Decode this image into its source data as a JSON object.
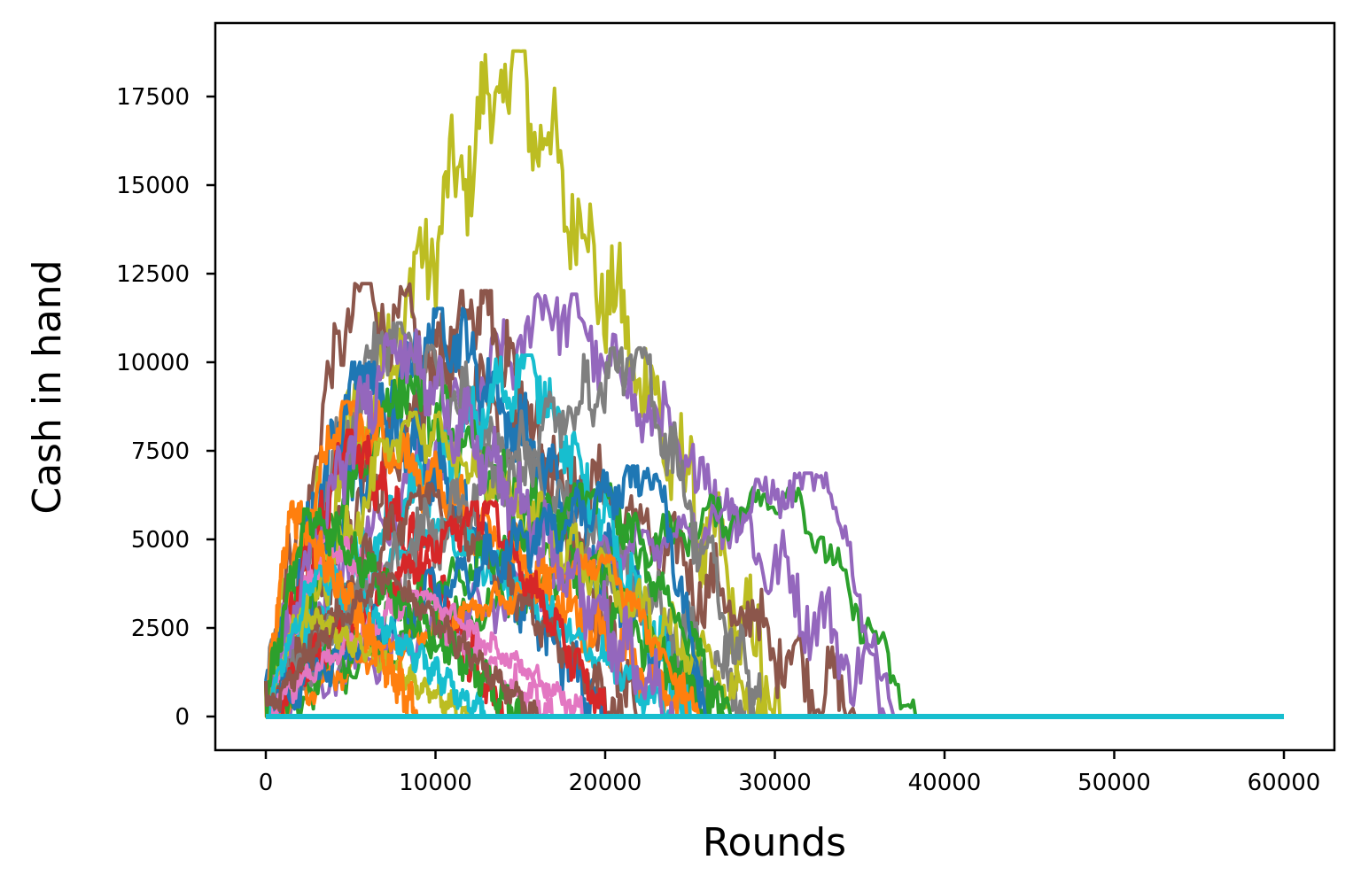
{
  "chart_data": {
    "type": "line",
    "title": "",
    "xlabel": "Rounds",
    "ylabel": "Cash in hand",
    "xlim": [
      -3000,
      63000
    ],
    "ylim": [
      -900,
      19500
    ],
    "xticks": [
      0,
      10000,
      20000,
      30000,
      40000,
      50000,
      60000
    ],
    "xtick_labels": [
      "0",
      "10000",
      "20000",
      "30000",
      "40000",
      "50000",
      "60000"
    ],
    "yticks": [
      0,
      2500,
      5000,
      7500,
      10000,
      12500,
      15000,
      17500
    ],
    "ytick_labels": [
      "0",
      "2500",
      "5000",
      "7500",
      "10000",
      "12500",
      "15000",
      "17500"
    ],
    "grid": false,
    "legend": null,
    "description": "Many simulated random-walk trajectories of cash in hand over rounds; all paths eventually hit 0 and stay flat at 0 until 60000 rounds.",
    "series": [
      {
        "name": "olive-max",
        "color": "#bcbd22",
        "peak_x": 14500,
        "peak_y": 18600,
        "end_x": 30300
      },
      {
        "name": "brown-early",
        "color": "#8c564b",
        "peak_x": 5200,
        "peak_y": 12100,
        "end_x": 35000
      },
      {
        "name": "purple-a",
        "color": "#9467bd",
        "peak_x": 17000,
        "peak_y": 11800,
        "end_x": 37200
      },
      {
        "name": "brown-b",
        "color": "#8c564b",
        "peak_x": 12800,
        "peak_y": 11900,
        "end_x": 22000
      },
      {
        "name": "blue-a",
        "color": "#1f77b4",
        "peak_x": 10300,
        "peak_y": 11400,
        "end_x": 26000
      },
      {
        "name": "gray-a",
        "color": "#7f7f7f",
        "peak_x": 7000,
        "peak_y": 11000,
        "end_x": 29200
      },
      {
        "name": "green-long",
        "color": "#2ca02c",
        "peak_x": 31000,
        "peak_y": 6400,
        "end_x": 38300
      },
      {
        "name": "purple-b",
        "color": "#9467bd",
        "peak_x": 33000,
        "peak_y": 6800,
        "end_x": 37000
      },
      {
        "name": "cyan-a",
        "color": "#17becf",
        "peak_x": 15500,
        "peak_y": 10100,
        "end_x": 25000
      },
      {
        "name": "blue-b",
        "color": "#1f77b4",
        "peak_x": 5500,
        "peak_y": 9900,
        "end_x": 20000
      },
      {
        "name": "green-a",
        "color": "#2ca02c",
        "peak_x": 8000,
        "peak_y": 9500,
        "end_x": 27000
      },
      {
        "name": "orange-a",
        "color": "#ff7f0e",
        "peak_x": 4500,
        "peak_y": 8800,
        "end_x": 25000
      },
      {
        "name": "red-a",
        "color": "#d62728",
        "peak_x": 5000,
        "peak_y": 8000,
        "end_x": 14000
      },
      {
        "name": "olive-b",
        "color": "#bcbd22",
        "peak_x": 8500,
        "peak_y": 8500,
        "end_x": 29500
      },
      {
        "name": "pink-a",
        "color": "#e377c2",
        "peak_x": 3500,
        "peak_y": 5000,
        "end_x": 17000
      },
      {
        "name": "cyan-b",
        "color": "#17becf",
        "peak_x": 10000,
        "peak_y": 5500,
        "end_x": 24000
      },
      {
        "name": "brown-c",
        "color": "#8c564b",
        "peak_x": 9500,
        "peak_y": 6500,
        "end_x": 21000
      },
      {
        "name": "orange-b",
        "color": "#ff7f0e",
        "peak_x": 20000,
        "peak_y": 4500,
        "end_x": 25500
      },
      {
        "name": "green-b",
        "color": "#2ca02c",
        "peak_x": 20000,
        "peak_y": 6500,
        "end_x": 27500
      },
      {
        "name": "gray-b",
        "color": "#7f7f7f",
        "peak_x": 22000,
        "peak_y": 10300,
        "end_x": 29000
      },
      {
        "name": "purple-c",
        "color": "#9467bd",
        "peak_x": 7500,
        "peak_y": 10800,
        "end_x": 24000
      },
      {
        "name": "red-b",
        "color": "#d62728",
        "peak_x": 13000,
        "peak_y": 6000,
        "end_x": 20000
      },
      {
        "name": "blue-c",
        "color": "#1f77b4",
        "peak_x": 23000,
        "peak_y": 7000,
        "end_x": 26000
      },
      {
        "name": "pink-b",
        "color": "#e377c2",
        "peak_x": 9000,
        "peak_y": 3500,
        "end_x": 19000
      },
      {
        "name": "olive-c",
        "color": "#bcbd22",
        "peak_x": 2000,
        "peak_y": 3000,
        "end_x": 12000
      },
      {
        "name": "cyan-c",
        "color": "#17becf",
        "peak_x": 3000,
        "peak_y": 4200,
        "end_x": 13000
      },
      {
        "name": "orange-c",
        "color": "#ff7f0e",
        "peak_x": 1500,
        "peak_y": 6000,
        "end_x": 9000
      },
      {
        "name": "green-c",
        "color": "#2ca02c",
        "peak_x": 2500,
        "peak_y": 5800,
        "end_x": 15000
      },
      {
        "name": "brown-d",
        "color": "#8c564b",
        "peak_x": 7000,
        "peak_y": 4000,
        "end_x": 16000
      },
      {
        "name": "cyan-flat",
        "color": "#17becf",
        "peak_x": 0,
        "peak_y": 0,
        "end_x": 60000
      }
    ]
  }
}
